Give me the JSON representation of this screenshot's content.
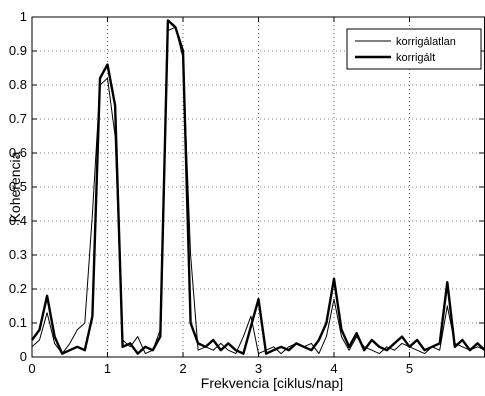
{
  "chart_data": {
    "type": "line",
    "xlabel": "Frekvencia [ciklus/nap]",
    "ylabel": "Koherencia",
    "xlim": [
      0,
      6.0
    ],
    "ylim": [
      0,
      1
    ],
    "xticks": [
      0,
      1,
      2,
      3,
      4,
      5
    ],
    "yticks": [
      0,
      0.1,
      0.2,
      0.3,
      0.4,
      0.5,
      0.6,
      0.7,
      0.8,
      0.9,
      1
    ],
    "grid": "dotted",
    "legend_position": "top-right",
    "series": [
      {
        "name": "korrigálatlan",
        "color": "#000000",
        "line_width": "thin",
        "x": [
          0,
          0.1,
          0.2,
          0.3,
          0.4,
          0.5,
          0.6,
          0.7,
          0.8,
          0.9,
          1.0,
          1.1,
          1.2,
          1.3,
          1.4,
          1.5,
          1.6,
          1.7,
          1.8,
          1.9,
          2.0,
          2.1,
          2.2,
          2.3,
          2.4,
          2.5,
          2.6,
          2.7,
          2.8,
          2.9,
          3.0,
          3.1,
          3.2,
          3.3,
          3.4,
          3.5,
          3.6,
          3.7,
          3.8,
          3.9,
          4.0,
          4.1,
          4.2,
          4.3,
          4.4,
          4.5,
          4.6,
          4.7,
          4.8,
          4.9,
          5.0,
          5.1,
          5.2,
          5.3,
          5.4,
          5.5,
          5.6,
          5.7,
          5.8,
          5.9,
          6.0
        ],
        "values": [
          0.03,
          0.05,
          0.13,
          0.04,
          0.01,
          0.04,
          0.08,
          0.1,
          0.42,
          0.8,
          0.82,
          0.65,
          0.05,
          0.03,
          0.06,
          0.01,
          0.02,
          0.08,
          0.96,
          0.97,
          0.88,
          0.3,
          0.02,
          0.03,
          0.02,
          0.04,
          0.02,
          0.01,
          0.06,
          0.12,
          0.01,
          0.02,
          0.03,
          0.01,
          0.03,
          0.04,
          0.03,
          0.04,
          0.01,
          0.06,
          0.17,
          0.06,
          0.02,
          0.06,
          0.03,
          0.02,
          0.01,
          0.03,
          0.02,
          0.04,
          0.03,
          0.02,
          0.01,
          0.03,
          0.02,
          0.15,
          0.04,
          0.03,
          0.02,
          0.03,
          0.02
        ]
      },
      {
        "name": "korrigált",
        "color": "#000000",
        "line_width": "thick",
        "x": [
          0,
          0.1,
          0.2,
          0.3,
          0.4,
          0.5,
          0.6,
          0.7,
          0.8,
          0.9,
          1.0,
          1.1,
          1.2,
          1.3,
          1.4,
          1.5,
          1.6,
          1.7,
          1.8,
          1.9,
          2.0,
          2.1,
          2.2,
          2.3,
          2.4,
          2.5,
          2.6,
          2.7,
          2.8,
          2.9,
          3.0,
          3.1,
          3.2,
          3.3,
          3.4,
          3.5,
          3.6,
          3.7,
          3.8,
          3.9,
          4.0,
          4.1,
          4.2,
          4.3,
          4.4,
          4.5,
          4.6,
          4.7,
          4.8,
          4.9,
          5.0,
          5.1,
          5.2,
          5.3,
          5.4,
          5.5,
          5.6,
          5.7,
          5.8,
          5.9,
          6.0
        ],
        "values": [
          0.05,
          0.08,
          0.18,
          0.06,
          0.01,
          0.02,
          0.03,
          0.02,
          0.12,
          0.82,
          0.86,
          0.74,
          0.03,
          0.04,
          0.01,
          0.03,
          0.02,
          0.06,
          0.99,
          0.97,
          0.9,
          0.1,
          0.04,
          0.03,
          0.05,
          0.02,
          0.04,
          0.02,
          0.01,
          0.09,
          0.17,
          0.01,
          0.02,
          0.03,
          0.02,
          0.04,
          0.03,
          0.02,
          0.05,
          0.1,
          0.23,
          0.08,
          0.03,
          0.07,
          0.02,
          0.05,
          0.03,
          0.02,
          0.04,
          0.06,
          0.03,
          0.05,
          0.02,
          0.03,
          0.04,
          0.22,
          0.03,
          0.05,
          0.02,
          0.04,
          0.02
        ]
      }
    ]
  }
}
